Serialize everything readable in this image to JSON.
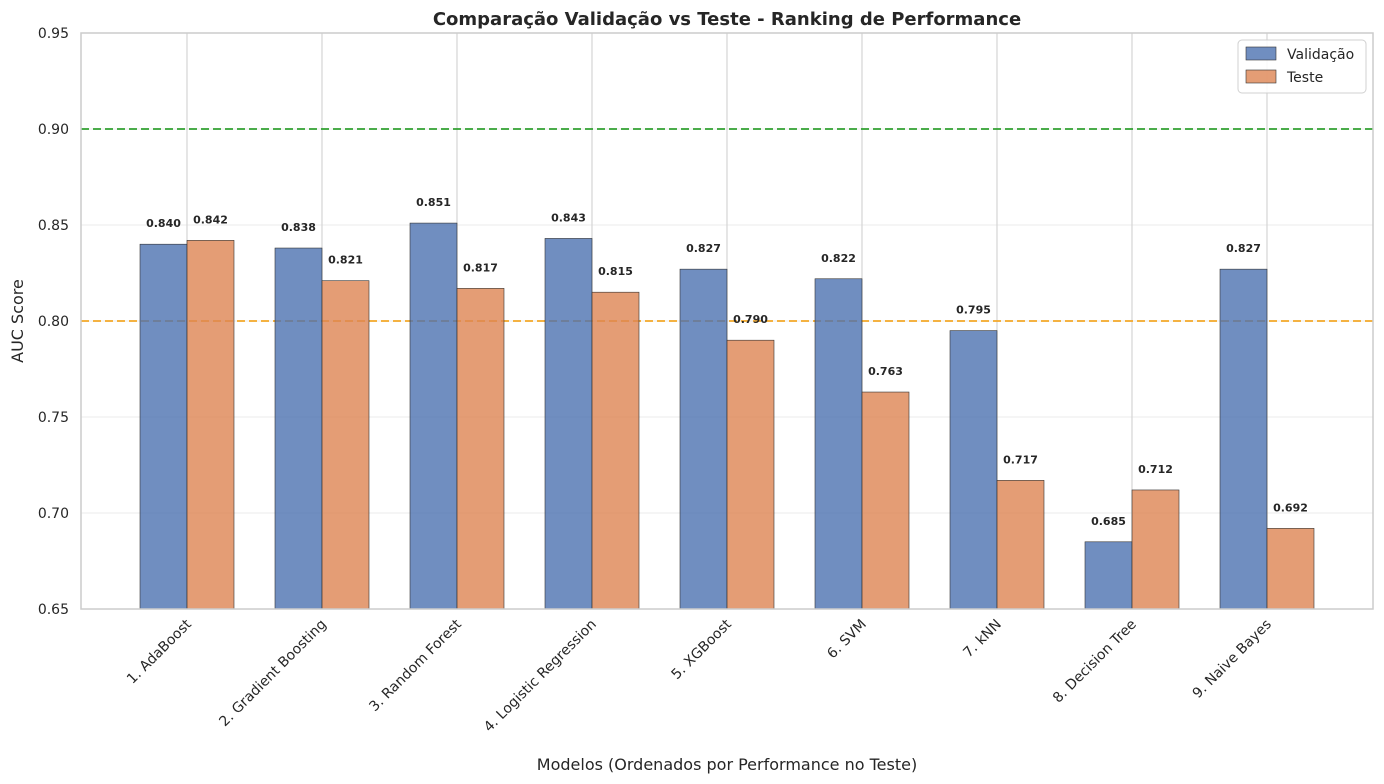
{
  "chart_data": {
    "type": "bar",
    "title": "Comparação Validação vs Teste - Ranking de Performance",
    "xlabel": "Modelos (Ordenados por Performance no Teste)",
    "ylabel": "AUC Score",
    "ylim": [
      0.65,
      0.95
    ],
    "yticks": [
      "0.65",
      "0.70",
      "0.75",
      "0.80",
      "0.85",
      "0.90",
      "0.95"
    ],
    "categories": [
      "1. AdaBoost",
      "2. Gradient Boosting",
      "3. Random Forest",
      "4. Logistic Regression",
      "5. XGBoost",
      "6. SVM",
      "7. kNN",
      "8. Decision Tree",
      "9. Naive Bayes"
    ],
    "series": [
      {
        "name": "Validação",
        "color": "#4c72b0",
        "values": [
          0.84,
          0.838,
          0.851,
          0.843,
          0.827,
          0.822,
          0.795,
          0.685,
          0.827
        ],
        "labels": [
          "0.840",
          "0.838",
          "0.851",
          "0.843",
          "0.827",
          "0.822",
          "0.795",
          "0.685",
          "0.827"
        ]
      },
      {
        "name": "Teste",
        "color": "#dd8452",
        "values": [
          0.842,
          0.821,
          0.817,
          0.815,
          0.79,
          0.763,
          0.717,
          0.712,
          0.692
        ],
        "labels": [
          "0.842",
          "0.821",
          "0.817",
          "0.815",
          "0.790",
          "0.763",
          "0.717",
          "0.712",
          "0.692"
        ]
      }
    ],
    "reference_lines": [
      {
        "value": 0.9,
        "color": "#2ca02c"
      },
      {
        "value": 0.8,
        "color": "#f5a623"
      }
    ],
    "grid": true,
    "legend_position": "top-right"
  }
}
